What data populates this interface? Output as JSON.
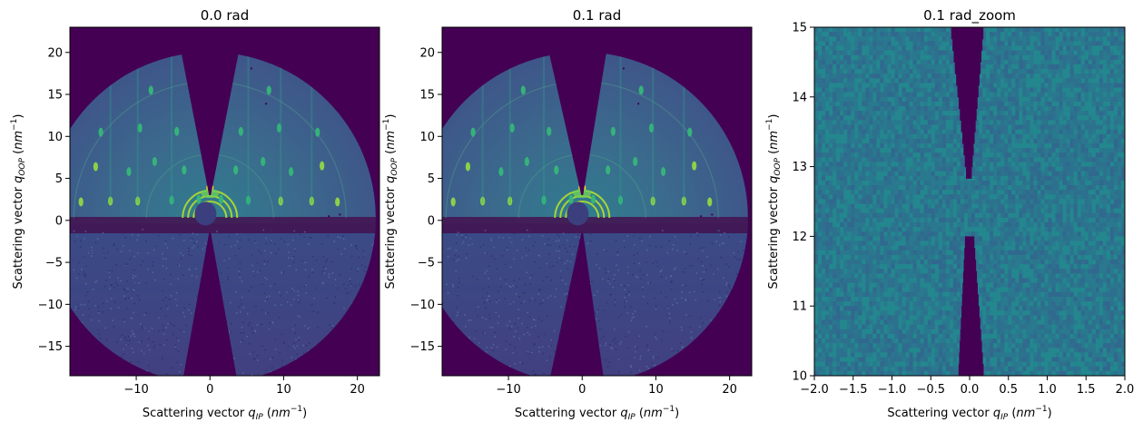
{
  "figure": {
    "panels": [
      {
        "title": "0.0 rad"
      },
      {
        "title": "0.1 rad"
      },
      {
        "title": "0.1 rad_zoom"
      }
    ]
  },
  "colors": {
    "background_viridis_min": "#440154",
    "detector_base": "#3e5a8c",
    "ring_accent": "#8fd744",
    "peak_bright": "#fde725"
  },
  "chart_data": [
    {
      "type": "heatmap",
      "title": "0.0 rad",
      "xlabel": "Scattering vector q_IP (nm^-1)",
      "ylabel": "Scattering vector q_OOP (nm^-1)",
      "xlim": [
        -19,
        23
      ],
      "ylim": [
        -18.5,
        23
      ],
      "xticks": [
        -10,
        0,
        10,
        20
      ],
      "yticks": [
        -15,
        -10,
        -5,
        0,
        5,
        10,
        15,
        20
      ],
      "colormap": "viridis",
      "wedge_center_x": 0.0,
      "detector_radius": 22.5
    },
    {
      "type": "heatmap",
      "title": "0.1 rad",
      "xlabel": "Scattering vector q_IP (nm^-1)",
      "ylabel": "Scattering vector q_OOP (nm^-1)",
      "xlim": [
        -19,
        23
      ],
      "ylim": [
        -18.5,
        23
      ],
      "xticks": [
        -10,
        0,
        10,
        20
      ],
      "yticks": [
        -15,
        -10,
        -5,
        0,
        5,
        10,
        15,
        20
      ],
      "colormap": "viridis",
      "wedge_center_x": 0.0,
      "detector_radius": 22.5
    },
    {
      "type": "heatmap",
      "title": "0.1 rad_zoom",
      "xlabel": "Scattering vector q_IP (nm^-1)",
      "ylabel": "Scattering vector q_OOP (nm^-1)",
      "xlim": [
        -2.0,
        2.0
      ],
      "ylim": [
        10,
        15
      ],
      "xticks": [
        -2.0,
        -1.5,
        -1.0,
        -0.5,
        0.0,
        0.5,
        1.0,
        1.5,
        2.0
      ],
      "yticks": [
        10,
        11,
        12,
        13,
        14,
        15
      ],
      "colormap": "viridis"
    }
  ]
}
